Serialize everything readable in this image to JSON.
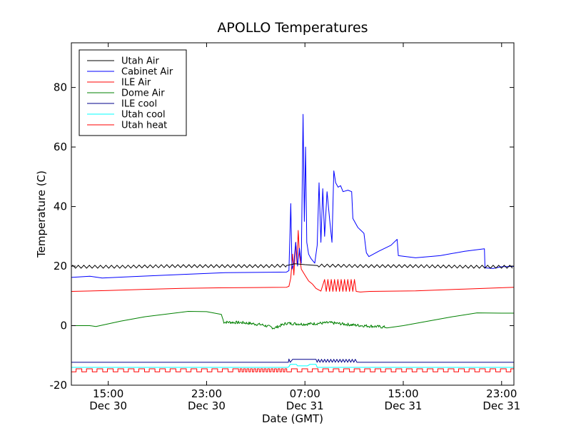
{
  "chart_data": {
    "type": "line",
    "title": "APOLLO Temperatures",
    "xlabel": "Date (GMT)",
    "ylabel": "Temperature (C)",
    "x_unit": "hours since 12:00 Dec 30 (GMT)",
    "xlim": [
      0,
      36
    ],
    "ylim": [
      -20,
      95
    ],
    "yticks": [
      -20,
      0,
      20,
      40,
      60,
      80
    ],
    "xticks": [
      {
        "x": 3,
        "line1": "15:00",
        "line2": "Dec 30"
      },
      {
        "x": 11,
        "line1": "23:00",
        "line2": "Dec 30"
      },
      {
        "x": 19,
        "line1": "07:00",
        "line2": "Dec 31"
      },
      {
        "x": 27,
        "line1": "15:00",
        "line2": "Dec 31"
      },
      {
        "x": 35,
        "line1": "23:00",
        "line2": "Dec 31"
      }
    ],
    "legend_position": "top-left",
    "series": [
      {
        "name": "Utah Air",
        "color": "#000000",
        "points": [
          [
            0,
            19.8
          ],
          [
            4,
            19.8
          ],
          [
            8,
            20
          ],
          [
            12,
            20
          ],
          [
            16,
            20
          ],
          [
            17.5,
            20.2
          ],
          [
            18.2,
            20.8
          ],
          [
            19,
            20.5
          ],
          [
            20,
            20.2
          ],
          [
            24,
            20
          ],
          [
            28,
            20
          ],
          [
            32,
            19.8
          ],
          [
            34.5,
            19.8
          ],
          [
            36,
            19.8
          ]
        ],
        "ripple": {
          "amplitude": 0.5,
          "period": 0.45
        }
      },
      {
        "name": "Cabinet Air",
        "color": "#0000ff",
        "points": [
          [
            0,
            16.2
          ],
          [
            1.5,
            16.6
          ],
          [
            2.5,
            16
          ],
          [
            5,
            16.5
          ],
          [
            9,
            17.2
          ],
          [
            12.5,
            17.8
          ],
          [
            17.5,
            18
          ],
          [
            17.7,
            18.5
          ],
          [
            17.85,
            41
          ],
          [
            17.95,
            19
          ],
          [
            18.1,
            21
          ],
          [
            18.25,
            28
          ],
          [
            18.4,
            20
          ],
          [
            18.55,
            26
          ],
          [
            18.7,
            21
          ],
          [
            18.85,
            71
          ],
          [
            18.95,
            35
          ],
          [
            19.05,
            60
          ],
          [
            19.15,
            28
          ],
          [
            19.3,
            24
          ],
          [
            19.5,
            22.5
          ],
          [
            19.8,
            21
          ],
          [
            20,
            27
          ],
          [
            20.15,
            48
          ],
          [
            20.3,
            28
          ],
          [
            20.45,
            46
          ],
          [
            20.6,
            30
          ],
          [
            20.8,
            45
          ],
          [
            21,
            36
          ],
          [
            21.2,
            28
          ],
          [
            21.35,
            52
          ],
          [
            21.5,
            48
          ],
          [
            21.7,
            46.5
          ],
          [
            21.9,
            47
          ],
          [
            22.1,
            45
          ],
          [
            22.5,
            45.5
          ],
          [
            22.8,
            45
          ],
          [
            22.9,
            36
          ],
          [
            23.3,
            33
          ],
          [
            23.8,
            31
          ],
          [
            24,
            24.5
          ],
          [
            24.2,
            23.2
          ],
          [
            25,
            25
          ],
          [
            26,
            27
          ],
          [
            26.5,
            29
          ],
          [
            26.6,
            23.5
          ],
          [
            28,
            22.8
          ],
          [
            30,
            23.5
          ],
          [
            32,
            25
          ],
          [
            33.6,
            25.8
          ],
          [
            33.65,
            19.4
          ],
          [
            34.3,
            19.2
          ],
          [
            35,
            19.8
          ],
          [
            36,
            19.9
          ]
        ]
      },
      {
        "name": "ILE Air",
        "color": "#ff0000",
        "points": [
          [
            0,
            11.5
          ],
          [
            3,
            11.8
          ],
          [
            6,
            12.2
          ],
          [
            9,
            12.5
          ],
          [
            12,
            12.7
          ],
          [
            15,
            12.8
          ],
          [
            17.5,
            12.9
          ],
          [
            17.7,
            13.2
          ],
          [
            17.85,
            16
          ],
          [
            18,
            24
          ],
          [
            18.1,
            17
          ],
          [
            18.25,
            28
          ],
          [
            18.35,
            21
          ],
          [
            18.45,
            32
          ],
          [
            18.55,
            24
          ],
          [
            18.7,
            19
          ],
          [
            19,
            17
          ],
          [
            19.3,
            15
          ],
          [
            19.6,
            14
          ],
          [
            19.9,
            12.5
          ],
          [
            20.3,
            11.6
          ],
          [
            20.8,
            11.3
          ],
          [
            23.5,
            11.3
          ],
          [
            24.3,
            11.5
          ],
          [
            28,
            11.7
          ],
          [
            32,
            12.3
          ],
          [
            36,
            12.9
          ]
        ],
        "oscillation": {
          "from": 20.6,
          "to": 23.3,
          "period": 0.27,
          "low": 11.5,
          "high": 15.5
        }
      },
      {
        "name": "Dome Air",
        "color": "#008000",
        "points": [
          [
            0,
            0
          ],
          [
            1.5,
            0
          ],
          [
            2,
            -0.3
          ],
          [
            4,
            1.5
          ],
          [
            6,
            3
          ],
          [
            8,
            4
          ],
          [
            9.5,
            4.8
          ],
          [
            11,
            4.7
          ],
          [
            12.2,
            3.8
          ],
          [
            12.4,
            1.2
          ],
          [
            14,
            1
          ],
          [
            15.5,
            0.3
          ],
          [
            16.5,
            -0.8
          ],
          [
            17.5,
            0.8
          ],
          [
            19,
            0.5
          ],
          [
            21,
            1
          ],
          [
            23,
            0.2
          ],
          [
            24.5,
            -0.2
          ],
          [
            25.5,
            -0.5
          ],
          [
            27,
            0
          ],
          [
            29,
            1.5
          ],
          [
            31,
            3
          ],
          [
            33,
            4.3
          ],
          [
            35,
            4.2
          ],
          [
            36,
            4.2
          ]
        ],
        "noise": {
          "from": 12.3,
          "to": 25.7,
          "amplitude": 0.5
        }
      },
      {
        "name": "ILE cool",
        "color": "#00008b",
        "points": [
          [
            0,
            -12.3
          ],
          [
            17.65,
            -12.3
          ],
          [
            17.7,
            -11.2
          ],
          [
            17.8,
            -12.3
          ],
          [
            18,
            -11.3
          ],
          [
            19,
            -11.3
          ],
          [
            19.9,
            -11.3
          ],
          [
            20,
            -12.3
          ],
          [
            36,
            -12.3
          ]
        ],
        "oscillation": {
          "from": 20.1,
          "to": 23.3,
          "period": 0.25,
          "low": -12.3,
          "high": -11.3
        }
      },
      {
        "name": "Utah cool",
        "color": "#00ffff",
        "points": [
          [
            0,
            -14
          ],
          [
            17.6,
            -14
          ],
          [
            17.7,
            -13.8
          ],
          [
            17.8,
            -13
          ],
          [
            18.3,
            -13
          ],
          [
            18.4,
            -13.5
          ],
          [
            19.2,
            -13.5
          ],
          [
            19.4,
            -13
          ],
          [
            19.9,
            -13
          ],
          [
            20,
            -14
          ],
          [
            36,
            -14
          ]
        ]
      },
      {
        "name": "Utah heat",
        "color": "#ff0000",
        "points": [],
        "pulse": {
          "from": 0,
          "to": 36,
          "period": 0.85,
          "duty": 0.45,
          "low": -15.5,
          "high": -14.5,
          "dense_from": 13.5,
          "dense_to": 17.5,
          "dense_period": 0.28
        }
      }
    ]
  }
}
